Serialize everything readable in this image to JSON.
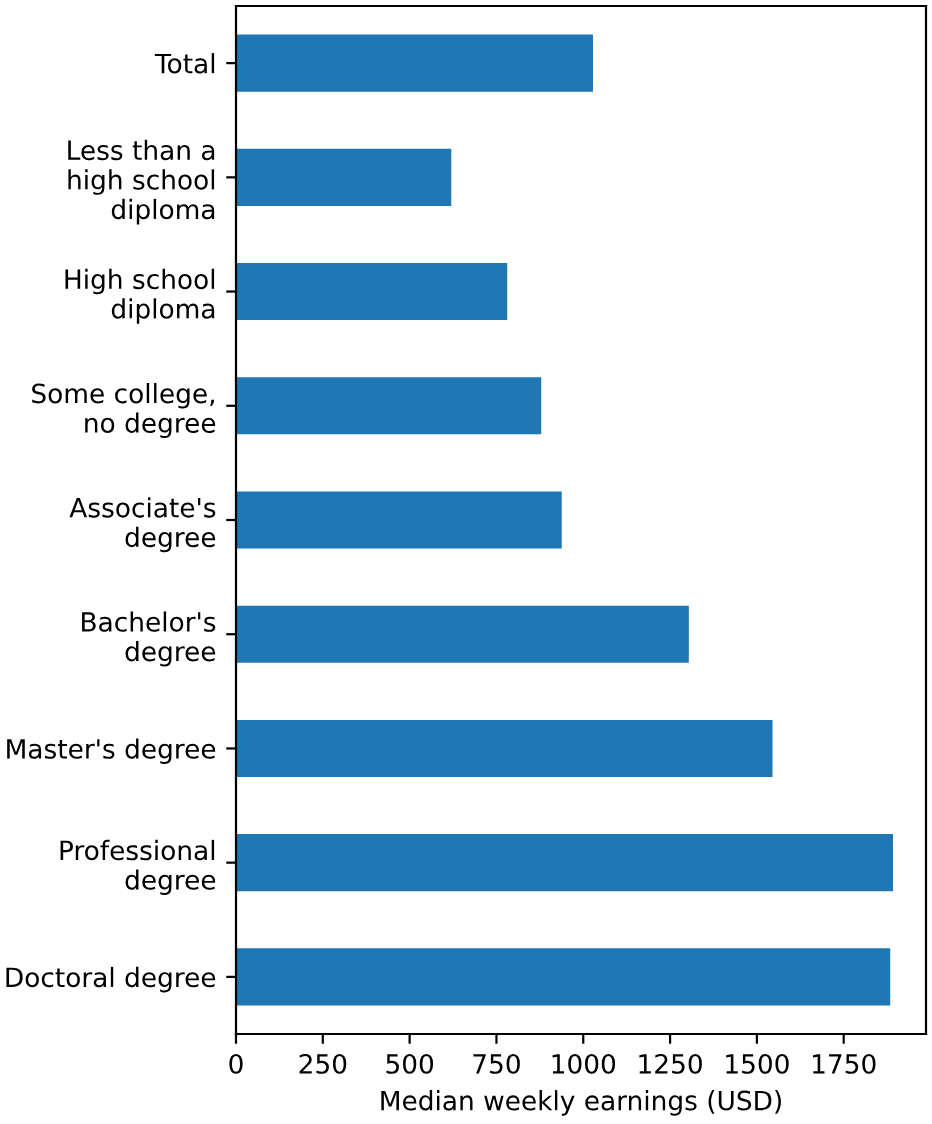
{
  "chart_data": {
    "type": "bar",
    "orientation": "horizontal",
    "categories": [
      "Total",
      "Less than a\nhigh school\ndiploma",
      "High school\ndiploma",
      "Some college,\nno degree",
      "Associate's\ndegree",
      "Bachelor's\ndegree",
      "Master's degree",
      "Professional\ndegree",
      "Doctoral degree"
    ],
    "values": [
      1028,
      620,
      781,
      879,
      938,
      1304,
      1545,
      1892,
      1884
    ],
    "color": "#1f77b4",
    "xlabel": "Median weekly earnings (USD)",
    "xlim": [
      0,
      1987
    ],
    "xticks": [
      0,
      250,
      500,
      750,
      1000,
      1250,
      1500,
      1750
    ],
    "grid": false,
    "legend": false
  }
}
